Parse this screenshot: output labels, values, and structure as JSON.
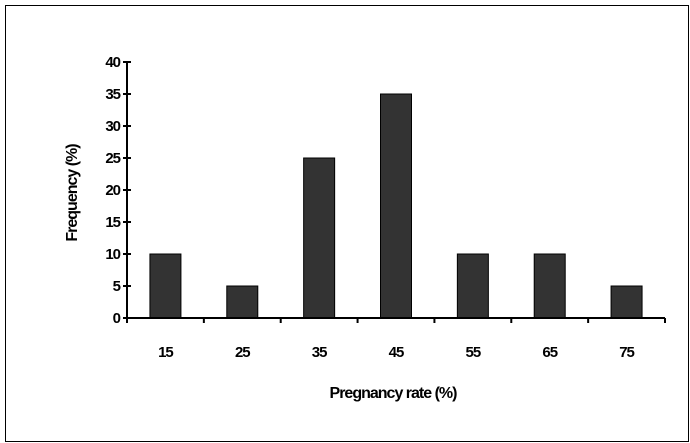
{
  "chart_data": {
    "type": "bar",
    "title": "",
    "xlabel": "Pregnancy rate (%)",
    "ylabel": "Frequency (%)",
    "categories": [
      "15",
      "25",
      "35",
      "45",
      "55",
      "65",
      "75"
    ],
    "values": [
      10,
      5,
      25,
      35,
      10,
      10,
      5
    ],
    "ylim": [
      0,
      40
    ],
    "yticks": [
      "0",
      "5",
      "10",
      "15",
      "20",
      "25",
      "30",
      "35",
      "40"
    ],
    "bar_color": "#333333",
    "grid": false,
    "legend": "none"
  }
}
